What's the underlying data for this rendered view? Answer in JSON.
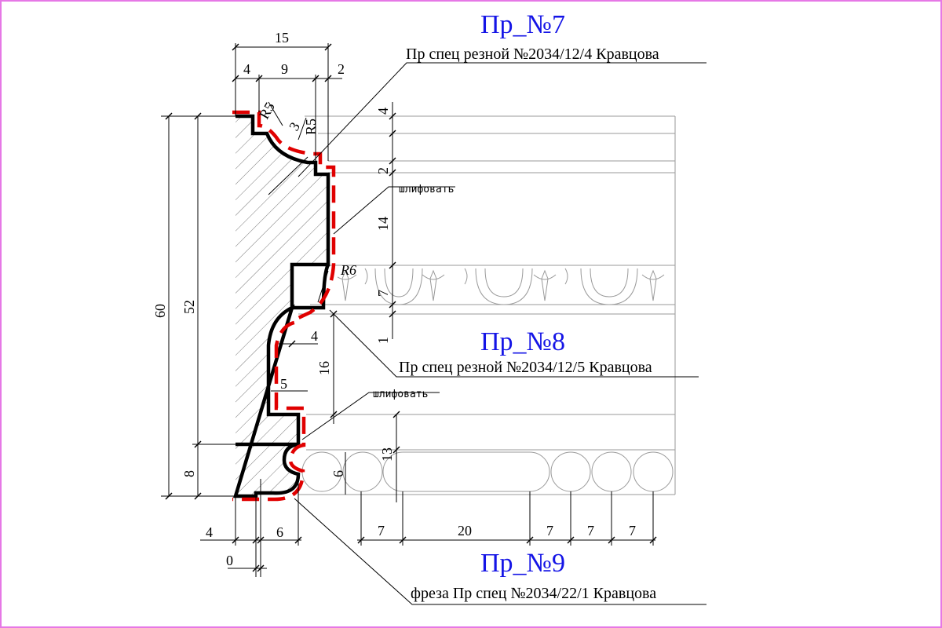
{
  "colors": {
    "frame": "#e678e6",
    "profile": "#000000",
    "cut_line": "#e00000",
    "title": "#1414e6"
  },
  "labels": {
    "pr7_title": "Пр_№7",
    "pr7_sub": "Пр спец резной №2034/12/4 Кравцова",
    "pr8_title": "Пр_№8",
    "pr8_sub": "Пр спец резной №2034/12/5 Кравцова",
    "pr9_title": "Пр_№9",
    "pr9_sub": "фреза Пр спец №2034/22/1 Кравцова",
    "sand_upper": "шлифовать",
    "sand_lower": "шлифовать"
  },
  "dims": {
    "top_total": "15",
    "top_a": "4",
    "top_b": "9",
    "top_c": "2",
    "left_60": "60",
    "left_52": "52",
    "left_8": "8",
    "r5_a": "R5",
    "r5_b": "R5",
    "d3": "3",
    "r6": "R6",
    "d4_mid": "4",
    "d16": "16",
    "d5": "5",
    "d6_small": "6",
    "d13": "13",
    "bottom_4": "4",
    "bottom_6": "6",
    "bottom_0": "0",
    "right_4": "4",
    "right_2": "2",
    "right_14": "14",
    "right_7": "7",
    "right_1": "1",
    "bead_7a": "7",
    "bead_20": "20",
    "bead_7b": "7",
    "bead_7c": "7",
    "bead_7d": "7"
  }
}
